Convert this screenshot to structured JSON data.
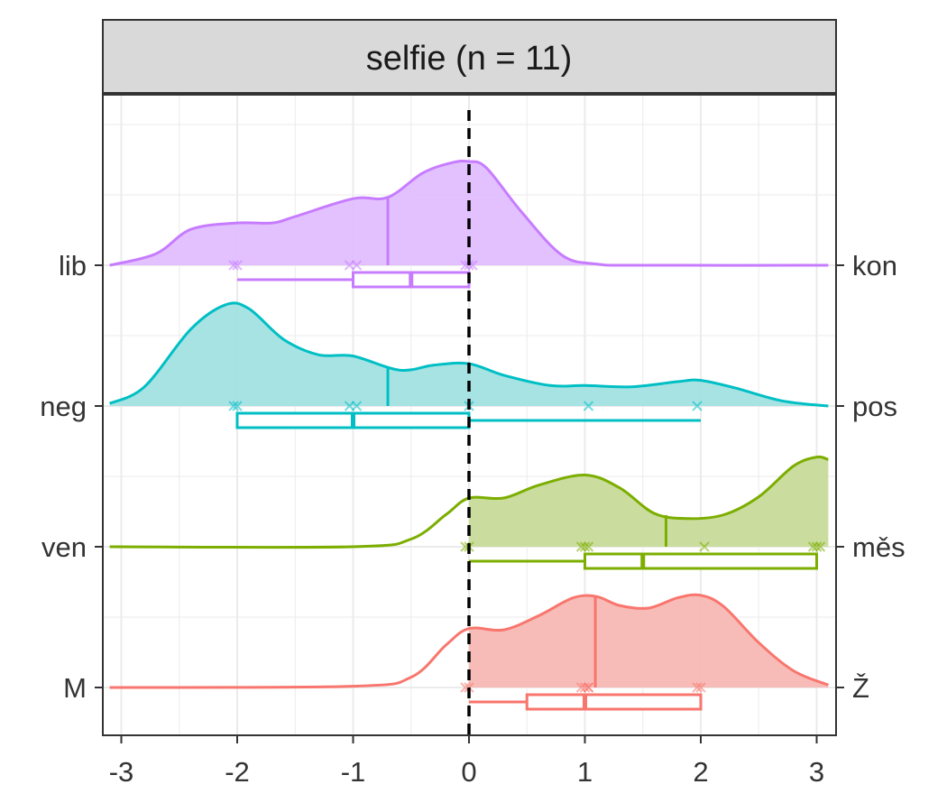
{
  "chart_data": {
    "type": "density_ridge",
    "facet_title": "selfie (n = 11)",
    "xlim": [
      -3.1,
      3.1
    ],
    "x_ticks": [
      -3,
      -2,
      -1,
      0,
      1,
      2,
      3
    ],
    "x_tick_labels": [
      "-3",
      "-2",
      "-1",
      "0",
      "1",
      "2",
      "3"
    ],
    "reference_line_x": 0,
    "grid": true,
    "series": [
      {
        "left_label": "M",
        "right_label": "Ž",
        "color": "#F8766D",
        "fill": "#F8B8B4",
        "mean": 1.09,
        "points": [
          0,
          0,
          1,
          1,
          1,
          1,
          2,
          2
        ],
        "box": {
          "min": 0,
          "q1": 0.5,
          "median": 1,
          "q3": 2,
          "max": 2
        },
        "density": [
          [
            -3.1,
            0
          ],
          [
            -1.0,
            0.01
          ],
          [
            -0.5,
            0.08
          ],
          [
            -0.2,
            0.33
          ],
          [
            0,
            0.46
          ],
          [
            0.3,
            0.45
          ],
          [
            0.6,
            0.56
          ],
          [
            0.9,
            0.7
          ],
          [
            1.1,
            0.71
          ],
          [
            1.3,
            0.64
          ],
          [
            1.55,
            0.62
          ],
          [
            1.8,
            0.7
          ],
          [
            2.0,
            0.72
          ],
          [
            2.2,
            0.63
          ],
          [
            2.5,
            0.35
          ],
          [
            2.8,
            0.13
          ],
          [
            3.1,
            0.02
          ]
        ]
      },
      {
        "left_label": "ven",
        "right_label": "měs",
        "color": "#7CAE00",
        "fill": "#C7DB9A",
        "mean": 1.7,
        "points": [
          0,
          0,
          1,
          1,
          1,
          2,
          3,
          3,
          3
        ],
        "box": {
          "min": 0,
          "q1": 1,
          "median": 1.5,
          "q3": 3,
          "max": 3
        },
        "density": [
          [
            -3.1,
            0
          ],
          [
            -1.0,
            0.0
          ],
          [
            -0.5,
            0.06
          ],
          [
            -0.2,
            0.25
          ],
          [
            0,
            0.38
          ],
          [
            0.3,
            0.38
          ],
          [
            0.6,
            0.48
          ],
          [
            1.0,
            0.56
          ],
          [
            1.3,
            0.46
          ],
          [
            1.6,
            0.26
          ],
          [
            1.9,
            0.22
          ],
          [
            2.2,
            0.25
          ],
          [
            2.5,
            0.39
          ],
          [
            2.8,
            0.63
          ],
          [
            3.0,
            0.7
          ],
          [
            3.1,
            0.68
          ]
        ]
      },
      {
        "left_label": "neg",
        "right_label": "pos",
        "color": "#00BFC4",
        "fill": "#A3E2E3",
        "mean": -0.7,
        "points": [
          -2,
          -2,
          -1,
          -1,
          0,
          1,
          2
        ],
        "box": {
          "min": -2,
          "q1": -2,
          "median": -1,
          "q3": 0,
          "max": 2
        },
        "density": [
          [
            -3.1,
            0.02
          ],
          [
            -2.8,
            0.15
          ],
          [
            -2.4,
            0.6
          ],
          [
            -2.1,
            0.79
          ],
          [
            -1.9,
            0.76
          ],
          [
            -1.6,
            0.52
          ],
          [
            -1.3,
            0.4
          ],
          [
            -1.0,
            0.39
          ],
          [
            -0.6,
            0.28
          ],
          [
            -0.3,
            0.32
          ],
          [
            0,
            0.33
          ],
          [
            0.3,
            0.24
          ],
          [
            0.7,
            0.16
          ],
          [
            1.0,
            0.16
          ],
          [
            1.4,
            0.15
          ],
          [
            1.8,
            0.19
          ],
          [
            2.0,
            0.2
          ],
          [
            2.3,
            0.14
          ],
          [
            2.7,
            0.04
          ],
          [
            3.1,
            0.0
          ]
        ]
      },
      {
        "left_label": "lib",
        "right_label": "kon",
        "color": "#C77CFF",
        "fill": "#E2BEFF",
        "mean": -0.7,
        "points": [
          -2,
          -2,
          -1,
          -1,
          0,
          0,
          0
        ],
        "box": {
          "min": -2,
          "q1": -1,
          "median": -0.5,
          "q3": 0,
          "max": 0
        },
        "density": [
          [
            -3.1,
            0.0
          ],
          [
            -2.7,
            0.09
          ],
          [
            -2.4,
            0.28
          ],
          [
            -2.0,
            0.33
          ],
          [
            -1.7,
            0.33
          ],
          [
            -1.5,
            0.38
          ],
          [
            -1.0,
            0.52
          ],
          [
            -0.7,
            0.53
          ],
          [
            -0.4,
            0.72
          ],
          [
            -0.15,
            0.8
          ],
          [
            0,
            0.81
          ],
          [
            0.15,
            0.76
          ],
          [
            0.45,
            0.42
          ],
          [
            0.8,
            0.08
          ],
          [
            1.1,
            0.01
          ],
          [
            1.5,
            0
          ],
          [
            3.1,
            0
          ]
        ]
      }
    ]
  }
}
